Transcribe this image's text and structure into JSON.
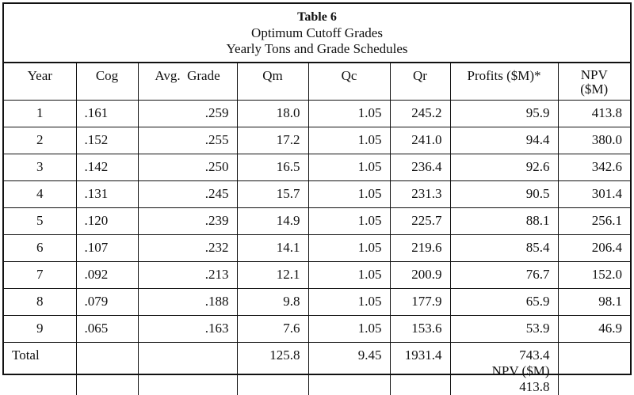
{
  "title": {
    "line1": "Table 6",
    "line2": "Optimum Cutoff Grades",
    "line3": "Yearly Tons and Grade Schedules"
  },
  "headers": {
    "year": "Year",
    "cog": "Cog",
    "avg_grade": "Avg.  Grade",
    "qm": "Qm",
    "qc": "Qc",
    "qr": "Qr",
    "profits": "Profits ($M)*",
    "npv_line1": "NPV",
    "npv_line2": "($M)"
  },
  "rows": [
    {
      "year": "1",
      "cog": ".161",
      "avg": ".259",
      "qm": "18.0",
      "qc": "1.05",
      "qr": "245.2",
      "profits": "95.9",
      "npv": "413.8"
    },
    {
      "year": "2",
      "cog": ".152",
      "avg": ".255",
      "qm": "17.2",
      "qc": "1.05",
      "qr": "241.0",
      "profits": "94.4",
      "npv": "380.0"
    },
    {
      "year": "3",
      "cog": ".142",
      "avg": ".250",
      "qm": "16.5",
      "qc": "1.05",
      "qr": "236.4",
      "profits": "92.6",
      "npv": "342.6"
    },
    {
      "year": "4",
      "cog": ".131",
      "avg": ".245",
      "qm": "15.7",
      "qc": "1.05",
      "qr": "231.3",
      "profits": "90.5",
      "npv": "301.4"
    },
    {
      "year": "5",
      "cog": ".120",
      "avg": ".239",
      "qm": "14.9",
      "qc": "1.05",
      "qr": "225.7",
      "profits": "88.1",
      "npv": "256.1"
    },
    {
      "year": "6",
      "cog": ".107",
      "avg": ".232",
      "qm": "14.1",
      "qc": "1.05",
      "qr": "219.6",
      "profits": "85.4",
      "npv": "206.4"
    },
    {
      "year": "7",
      "cog": ".092",
      "avg": ".213",
      "qm": "12.1",
      "qc": "1.05",
      "qr": "200.9",
      "profits": "76.7",
      "npv": "152.0"
    },
    {
      "year": "8",
      "cog": ".079",
      "avg": ".188",
      "qm": "9.8",
      "qc": "1.05",
      "qr": "177.9",
      "profits": "65.9",
      "npv": "98.1"
    },
    {
      "year": "9",
      "cog": ".065",
      "avg": ".163",
      "qm": "7.6",
      "qc": "1.05",
      "qr": "153.6",
      "profits": "53.9",
      "npv": "46.9"
    }
  ],
  "total": {
    "label": "Total",
    "cog": "",
    "avg": "",
    "qm": "125.8",
    "qc": "9.45",
    "qr": "1931.4",
    "profits": "743.4",
    "npv_note": "NPV ($M) 413.8",
    "npv": ""
  }
}
